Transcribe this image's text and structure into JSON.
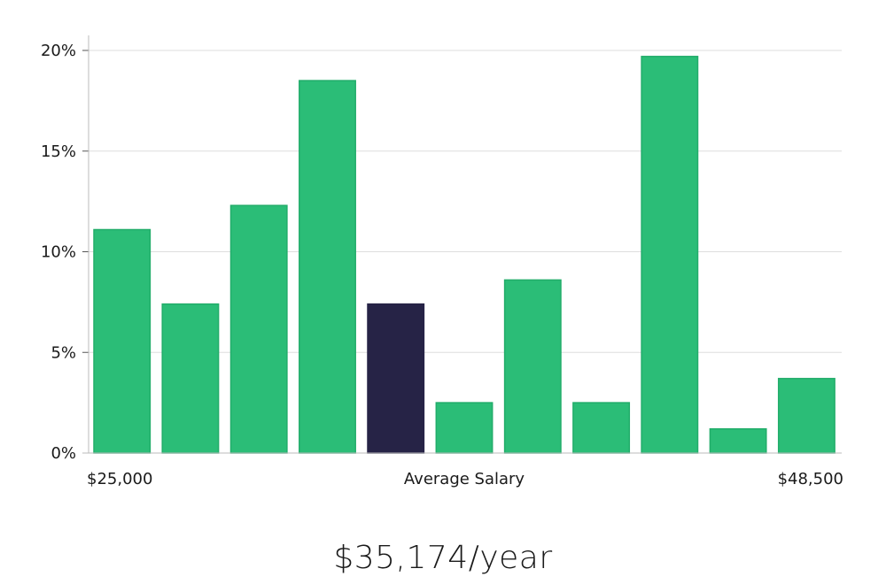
{
  "chart_data": {
    "type": "bar",
    "title": "",
    "xlabel": "Average Salary",
    "ylabel": "",
    "x_range_labels": {
      "min": "$25,000",
      "max": "$48,500"
    },
    "yticks": [
      "0%",
      "5%",
      "10%",
      "15%",
      "20%"
    ],
    "ylim": [
      0,
      20
    ],
    "values": [
      11.1,
      7.4,
      12.3,
      18.5,
      7.4,
      2.5,
      8.6,
      2.5,
      19.7,
      1.2,
      3.7
    ],
    "highlight_index": 4,
    "grid": true,
    "colors": {
      "bar": "#2bbd77",
      "bar_stroke": "#22ad6a",
      "highlight": "#262346",
      "grid": "#dddddd",
      "axis": "#bbbbbb"
    }
  },
  "summary": {
    "salary_text": "$35,174/year"
  }
}
